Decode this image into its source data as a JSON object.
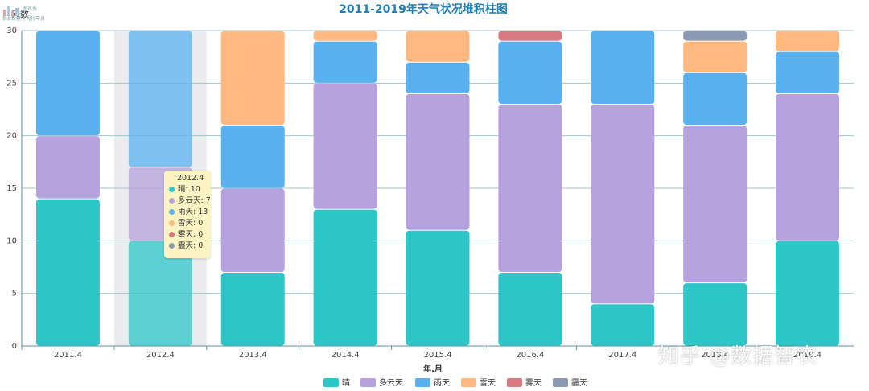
{
  "chart_data": {
    "type": "bar",
    "stacked": true,
    "title": "2011-2019年天气状况堆积柱图",
    "xlabel": "年.月",
    "ylabel": "天数",
    "ylim": [
      0,
      30
    ],
    "yticks": [
      0,
      5,
      10,
      15,
      20,
      25,
      30
    ],
    "grid": true,
    "legend_position": "bottom",
    "categories": [
      "2011.4",
      "2012.4",
      "2013.4",
      "2014.4",
      "2015.4",
      "2016.4",
      "2017.4",
      "2018.4",
      "2019.4"
    ],
    "series": [
      {
        "name": "晴",
        "color": "#2ec7c9",
        "values": [
          14,
          10,
          7,
          13,
          11,
          7,
          4,
          6,
          10
        ]
      },
      {
        "name": "多云天",
        "color": "#b6a2de",
        "values": [
          6,
          7,
          8,
          12,
          13,
          16,
          19,
          15,
          14
        ]
      },
      {
        "name": "雨天",
        "color": "#5ab1ef",
        "values": [
          10,
          13,
          6,
          4,
          3,
          6,
          7,
          5,
          4
        ]
      },
      {
        "name": "雪天",
        "color": "#ffb980",
        "values": [
          0,
          0,
          9,
          1,
          3,
          0,
          0,
          3,
          2
        ]
      },
      {
        "name": "雾天",
        "color": "#d87a80",
        "values": [
          0,
          0,
          0,
          0,
          0,
          1,
          0,
          0,
          0
        ]
      },
      {
        "name": "霾天",
        "color": "#8d98b3",
        "values": [
          0,
          0,
          0,
          0,
          0,
          0,
          0,
          1,
          0
        ]
      }
    ],
    "highlight_index": 1,
    "tooltip": {
      "title": "2012.4",
      "rows": [
        {
          "text": "晴: 10",
          "color": "#2ec7c9"
        },
        {
          "text": "多云天: 7",
          "color": "#b6a2de"
        },
        {
          "text": "雨天: 13",
          "color": "#5ab1ef"
        },
        {
          "text": "雪天: 0",
          "color": "#ffb980"
        },
        {
          "text": "雾天: 0",
          "color": "#d87a80"
        },
        {
          "text": "霾天: 0",
          "color": "#8d98b3"
        }
      ]
    }
  },
  "title_color": "#1e7fb4",
  "watermark": "知乎 @数据智农",
  "logo_text": "图表秀",
  "logo_subtext": "专业数据可视化平台"
}
